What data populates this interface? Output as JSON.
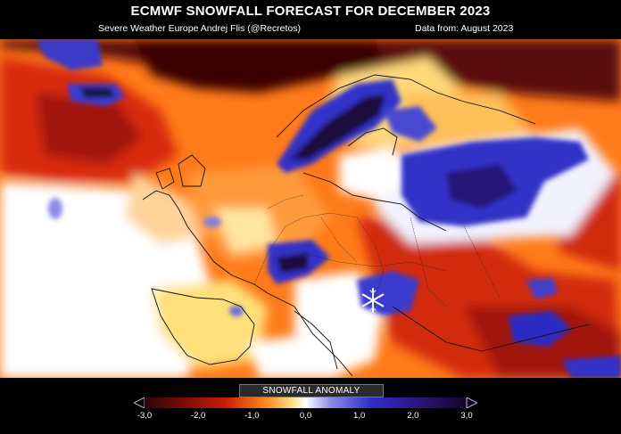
{
  "header": {
    "title": "ECMWF SNOWFALL FORECAST FOR  DECEMBER 2023",
    "source_left": "Severe Weather Europe   Andrej Flis (@Recretos)",
    "source_right": "Data from: August 2023"
  },
  "legend": {
    "title": "SNOWFALL ANOMALY",
    "ticks": [
      "-3,0",
      "-2,0",
      "-1,0",
      "0,0",
      "1,0",
      "2,0",
      "3,0"
    ],
    "colors": {
      "deep_negative": "#3a0a00",
      "negative": "#c81e00",
      "mild_negative": "#ff9a2e",
      "neutral": "#ffffff",
      "positive": "#3a3ad2",
      "deep_positive": "#1a0a3a"
    }
  },
  "map": {
    "icons": [
      "snowflake-icon"
    ]
  }
}
